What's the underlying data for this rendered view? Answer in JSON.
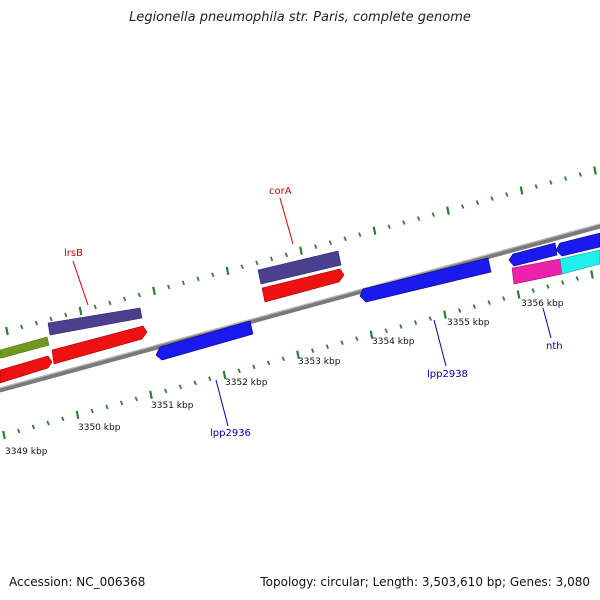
{
  "title": "Legionella pneumophila str. Paris, complete genome",
  "footer": {
    "accession": "Accession: NC_006368",
    "summary": "Topology: circular; Length: 3,503,610 bp; Genes: 3,080"
  },
  "colors": {
    "backbone": "#8a8a8a",
    "tick": "#2e7d32",
    "label_forward": "#cc0000",
    "label_reverse": "#0000aa"
  },
  "scale_labels": [
    "3349 kbp",
    "3350 kbp",
    "3351 kbp",
    "3352 kbp",
    "3353 kbp",
    "3354 kbp",
    "3355 kbp",
    "3356 kbp"
  ],
  "gene_labels": [
    {
      "id": "lrsB",
      "text": "lrsB",
      "strand": "forward"
    },
    {
      "id": "corA",
      "text": "corA",
      "strand": "forward"
    },
    {
      "id": "lpp2936",
      "text": "lpp2936",
      "strand": "reverse"
    },
    {
      "id": "lpp2938",
      "text": "lpp2938",
      "strand": "reverse"
    },
    {
      "id": "nth",
      "text": "nth",
      "strand": "reverse"
    }
  ],
  "features": [
    {
      "name": "olive-feature",
      "color": "#6f9a1f"
    },
    {
      "name": "slate-feature-lrsB",
      "color": "#4b3f8f"
    },
    {
      "name": "slate-feature-corA",
      "color": "#4b3f8f"
    },
    {
      "name": "red-feature-left",
      "color": "#ee1111"
    },
    {
      "name": "red-feature-lrsB",
      "color": "#ee1111"
    },
    {
      "name": "red-feature-corA",
      "color": "#ee1111"
    },
    {
      "name": "blue-feature-lpp2936",
      "color": "#1a1aee"
    },
    {
      "name": "blue-feature-lpp2938",
      "color": "#1a1aee"
    },
    {
      "name": "blue-feature-right-a",
      "color": "#1a1aee"
    },
    {
      "name": "blue-feature-right-b",
      "color": "#1a1aee"
    },
    {
      "name": "magenta-feature",
      "color": "#ee22aa"
    },
    {
      "name": "cyan-feature",
      "color": "#22eeee"
    }
  ]
}
